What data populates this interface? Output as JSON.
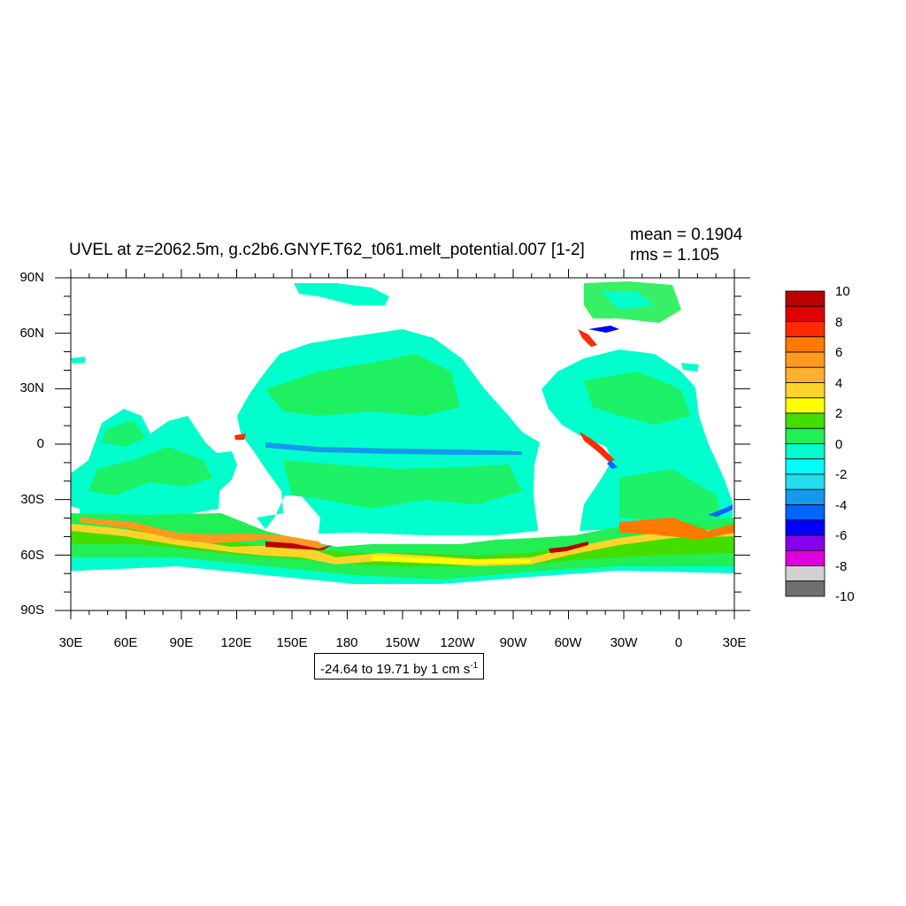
{
  "plot": {
    "title": "UVEL at z=2062.5m, g.c2b6.GNYF.T62_t061.melt_potential.007 [1-2]",
    "mean_text": "mean = 0.1904",
    "rms_text": "rms = 1.105",
    "range_text": "-24.64 to 19.71 by 1 cm s",
    "range_unit_exponent": "-1"
  },
  "axes": {
    "lat_labels": [
      "90N",
      "60N",
      "30N",
      "0",
      "30S",
      "60S",
      "90S"
    ],
    "lon_labels": [
      "30E",
      "60E",
      "90E",
      "120E",
      "150E",
      "180",
      "150W",
      "120W",
      "90W",
      "60W",
      "30W",
      "0",
      "30E"
    ]
  },
  "colorbar": {
    "labels": [
      "10",
      "8",
      "6",
      "4",
      "2",
      "0",
      "-2",
      "-4",
      "-6",
      "-8",
      "-10"
    ],
    "colors": [
      "#bb0000",
      "#e00000",
      "#ff2a00",
      "#ff7800",
      "#ff9a1e",
      "#ffb030",
      "#ffd42a",
      "#ffff00",
      "#44dd00",
      "#22ee55",
      "#00ffcc",
      "#00ffff",
      "#22ddee",
      "#1599ee",
      "#0066ff",
      "#0000ff",
      "#8800ee",
      "#dd00dd",
      "#d0d0d0",
      "#707070"
    ]
  },
  "chart_data": {
    "type": "heatmap",
    "title": "UVEL at z=2062.5m, g.c2b6.GNYF.T62_t061.melt_potential.007 [1-2]",
    "variable": "UVEL",
    "units": "cm s-1",
    "mean": 0.1904,
    "rms": 1.105,
    "min": -24.64,
    "max": 19.71,
    "contour_interval": 1,
    "x_range_lon": [
      30,
      390
    ],
    "y_range_lat": [
      -90,
      90
    ],
    "colorbar_range": [
      -10,
      10
    ]
  }
}
